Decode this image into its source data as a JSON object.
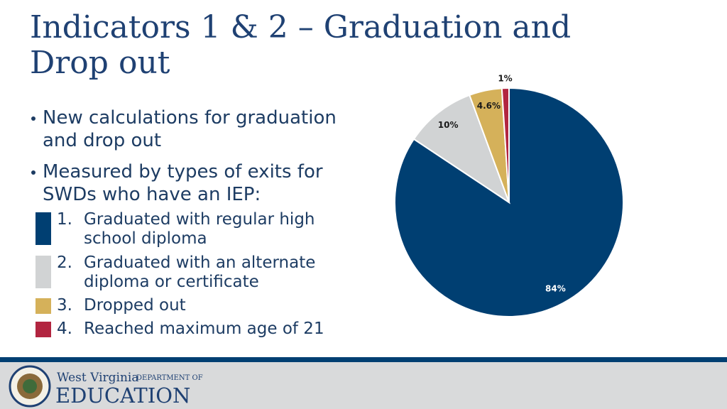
{
  "slide": {
    "title": "Indicators 1 & 2 – Graduation and Drop out",
    "bullets": [
      "New calculations for graduation and drop out",
      "Measured by types of exits for SWDs who have an IEP:"
    ],
    "list_numbers": [
      "1.",
      "2.",
      "3.",
      "4."
    ]
  },
  "chart_data": {
    "type": "pie",
    "categories": [
      "Graduated with regular high school diploma",
      "Graduated with an alternate diploma or certificate",
      "Dropped out",
      "Reached maximum age of 21"
    ],
    "values": [
      84,
      10,
      4.6,
      1
    ],
    "value_labels": [
      "84%",
      "10%",
      "4.6%",
      "1%"
    ],
    "colors": [
      "#003f72",
      "#d1d3d4",
      "#d5b15a",
      "#b22540"
    ]
  },
  "footer": {
    "state": "West Virginia",
    "department": "DEPARTMENT OF",
    "agency": "EDUCATION"
  }
}
